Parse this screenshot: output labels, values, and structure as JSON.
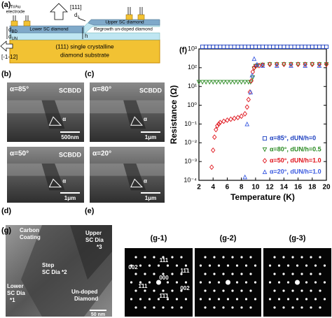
{
  "panel_a": {
    "label": "(a)",
    "electrode": [
      "Ti/Au",
      "electrode"
    ],
    "direction_up": "[111]",
    "direction_left": "[-1-12]",
    "ds": {
      "main": "d",
      "sub": "s"
    },
    "dbd": {
      "main": "d",
      "sub": "BD"
    },
    "dun": {
      "main": "d",
      "sub": "UN"
    },
    "h": "h",
    "upper": "Upper SC diamond",
    "lower": "Lower SC diamond",
    "regrowth": "Regrowth un-doped diamond",
    "substrate": [
      "(111) single crystalline",
      "diamond substrate"
    ]
  },
  "sem_panels": [
    {
      "label": "(b)",
      "alpha": "α=85°",
      "material": "SCBDD",
      "scale": "500nm",
      "angle": "α"
    },
    {
      "label": "(c)",
      "alpha": "α=80°",
      "material": "SCBDD",
      "scale": "1μm",
      "angle": "α"
    },
    {
      "label": "(d)",
      "alpha": "α=50°",
      "material": "SCBDD",
      "scale": "1μm",
      "angle": "α"
    },
    {
      "label": "(e)",
      "alpha": "α=20°",
      "scale": "1μm",
      "angle": "α"
    }
  ],
  "chart_data": {
    "type": "scatter",
    "panel_label": "(f)",
    "xlabel": "Temperature (K)",
    "ylabel": "Resistance (Ω)",
    "xlim": [
      2,
      20
    ],
    "ylim": [
      0.0001,
      1000
    ],
    "log_y": true,
    "xticks": [
      2,
      4,
      6,
      8,
      10,
      12,
      14,
      16,
      18,
      20
    ],
    "yticks": [
      {
        "value": 0.0001,
        "label": "10⁻⁴"
      },
      {
        "value": 0.001,
        "label": "10⁻³"
      },
      {
        "value": 0.01,
        "label": "10⁻²"
      },
      {
        "value": 0.1,
        "label": "10⁻¹"
      },
      {
        "value": 1,
        "label": "10⁰"
      },
      {
        "value": 10,
        "label": "10¹"
      },
      {
        "value": 100,
        "label": "10²"
      },
      {
        "value": 1000,
        "label": "10³"
      }
    ],
    "legend": "lower right",
    "series": [
      {
        "name": "α=85°, dUN/h=0",
        "color": "#1c3fc0",
        "marker": "square",
        "x": [
          2.5,
          3,
          3.5,
          4,
          4.5,
          5,
          5.5,
          6,
          6.5,
          7,
          7.5,
          8,
          8.5,
          9,
          9.5,
          10,
          10.5,
          11,
          11.5,
          12,
          12.5,
          13,
          13.5,
          14,
          14.5,
          15,
          15.5,
          16,
          16.5,
          17,
          17.5,
          18,
          18.5,
          19,
          19.5,
          20
        ],
        "values": [
          1300,
          1300,
          1300,
          1300,
          1300,
          1300,
          1300,
          1300,
          1300,
          1300,
          1300,
          1300,
          1300,
          1300,
          1300,
          1300,
          1300,
          1300,
          1300,
          1300,
          1300,
          1300,
          1300,
          1300,
          1300,
          1300,
          1300,
          1300,
          1300,
          1300,
          1300,
          1300,
          1300,
          1300,
          1300,
          1300
        ]
      },
      {
        "name": "α=80°, dUN/h=0.5",
        "color": "#2a8a22",
        "marker": "triangle-down",
        "x": [
          2,
          2.5,
          3,
          3.5,
          4,
          4.5,
          5,
          5.5,
          6,
          6.5,
          7,
          7.5,
          8,
          8.5,
          9,
          9.3,
          9.6,
          9.8,
          10,
          10.3,
          11,
          12,
          13,
          14,
          15,
          16,
          17,
          18,
          19,
          20
        ],
        "values": [
          17,
          17,
          17,
          17,
          17,
          17,
          17,
          17,
          17,
          17,
          17,
          17,
          17,
          17,
          17,
          17,
          30,
          90,
          120,
          130,
          140,
          150,
          150,
          150,
          150,
          150,
          150,
          150,
          150,
          150
        ]
      },
      {
        "name": "α=50°, dUN/h=1.0",
        "color": "#e0141c",
        "marker": "diamond",
        "x": [
          3.8,
          4,
          4.2,
          4.4,
          4.6,
          4.8,
          5,
          5.5,
          6,
          6.5,
          7,
          7.5,
          8,
          8.5,
          8.8,
          9,
          9.2,
          9.4,
          9.6,
          9.8,
          10,
          10.5,
          11,
          12,
          13,
          14,
          15,
          16,
          17,
          18,
          19,
          20
        ],
        "values": [
          0.0005,
          0.004,
          0.02,
          0.05,
          0.08,
          0.1,
          0.12,
          0.14,
          0.16,
          0.18,
          0.2,
          0.22,
          0.26,
          0.35,
          0.8,
          2,
          5,
          20,
          60,
          100,
          120,
          130,
          140,
          150,
          150,
          150,
          150,
          150,
          150,
          150,
          150,
          150
        ]
      },
      {
        "name": "α=20°, dUN/h=1.0",
        "color": "#3a5ae0",
        "marker": "triangle-up",
        "x": [
          8.5,
          8.8,
          9.3,
          9.5,
          9.8,
          10.2,
          11,
          13,
          15,
          17,
          19
        ],
        "values": [
          0.00015,
          0.1,
          5,
          40,
          300,
          150,
          130,
          130,
          130,
          130,
          130
        ]
      }
    ]
  },
  "panel_g": {
    "label": "(g)",
    "carbon": [
      "Carbon",
      "Coating"
    ],
    "upper": [
      "Upper",
      "SC Dia",
      "*3"
    ],
    "step": [
      "Step",
      "SC Dia *2"
    ],
    "lower": [
      "Lower",
      "SC Dia",
      "*1"
    ],
    "undoped": [
      "Un-doped",
      "Diamond"
    ],
    "scale": "50 nm",
    "patterns": [
      "(g-1)",
      "(g-2)",
      "(g-3)"
    ],
    "spots": [
      "002",
      "111",
      "11̄1",
      "000",
      "1̄11",
      "002",
      "1̄1̄1"
    ]
  }
}
